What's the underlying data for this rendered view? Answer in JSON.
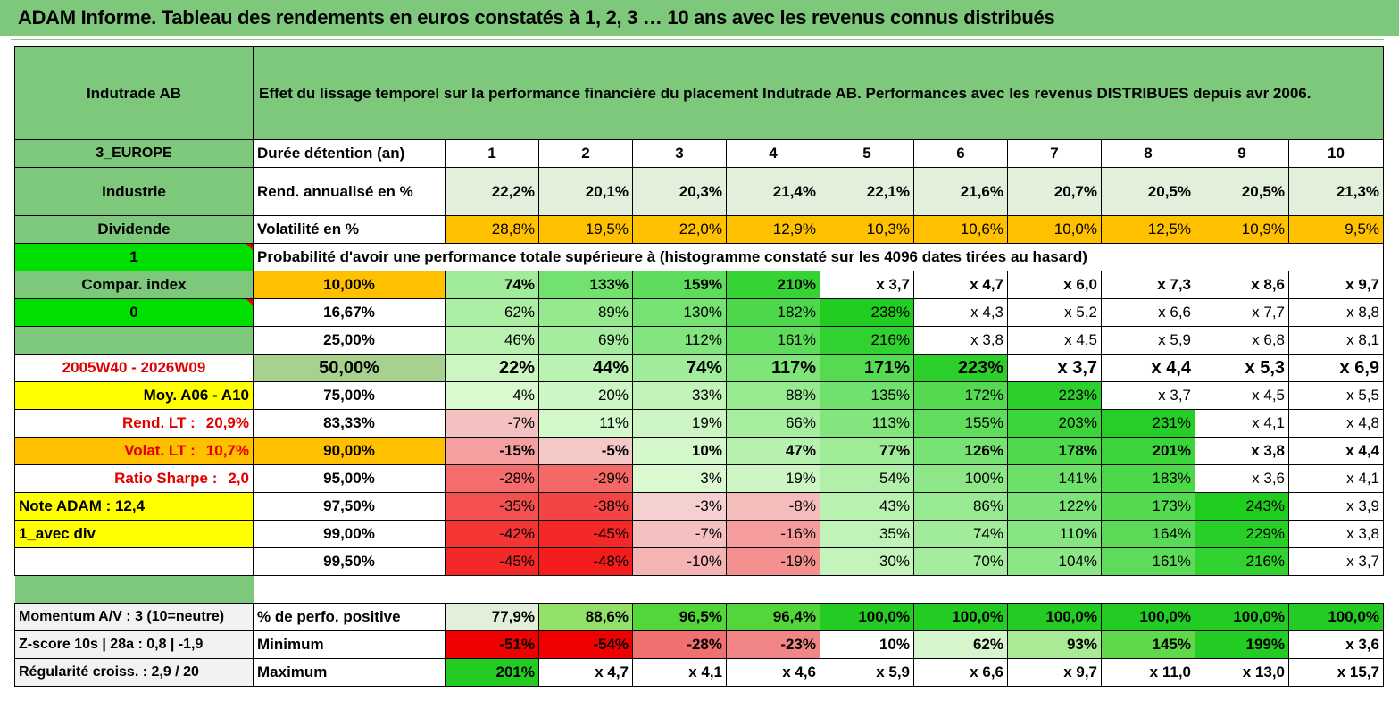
{
  "title": "ADAM Informe. Tableau des rendements en euros constatés à 1, 2, 3 … 10 ans avec les revenus connus distribués",
  "header": {
    "company": "Indutrade AB",
    "description": "Effet du lissage temporel sur la performance financière du placement Indutrade AB. Performances avec les revenus DISTRIBUES depuis avr 2006."
  },
  "side": {
    "region": "3_EUROPE",
    "sector": "Industrie",
    "type": "Dividende",
    "flag1": "1",
    "compar": "Compar. index",
    "flag0": "0",
    "period": "2005W40 - 2026W09",
    "moy": "Moy. A06 - A10",
    "rend_lt_label": "Rend. LT :",
    "rend_lt_value": "20,9%",
    "volat_lt_label": "Volat. LT :",
    "volat_lt_value": "10,7%",
    "sharpe_label": "Ratio Sharpe :",
    "sharpe_value": "2,0",
    "note": "Note ADAM : 12,4",
    "avec_div": "1_avec div",
    "momentum": "Momentum A/V : 3 (10=neutre)",
    "zscore": "Z-score 10s | 28a : 0,8 | -1,9",
    "regularite": "Régularité croiss. : 2,9 / 20"
  },
  "labels": {
    "duree": "Durée détention (an)",
    "rend": "Rend. annualisé en %",
    "vol": "Volatilité en %",
    "proba": "Probabilité d'avoir une performance totale supérieure à (histogramme constaté sur les 4096 dates tirées au hasard)",
    "perf_pos": "% de perfo. positive",
    "minimum": "Minimum",
    "maximum": "Maximum"
  },
  "years": [
    "1",
    "2",
    "3",
    "4",
    "5",
    "6",
    "7",
    "8",
    "9",
    "10"
  ],
  "rend": [
    "22,2%",
    "20,1%",
    "20,3%",
    "21,4%",
    "22,1%",
    "21,6%",
    "20,7%",
    "20,5%",
    "20,5%",
    "21,3%"
  ],
  "vol": [
    "28,8%",
    "19,5%",
    "22,0%",
    "12,9%",
    "10,3%",
    "10,6%",
    "10,0%",
    "12,5%",
    "10,9%",
    "9,5%"
  ],
  "prob_rows": [
    {
      "label": "10,00%",
      "values": [
        "74%",
        "133%",
        "159%",
        "210%",
        "x 3,7",
        "x 4,7",
        "x 6,0",
        "x 7,3",
        "x 8,6",
        "x 9,7"
      ]
    },
    {
      "label": "16,67%",
      "values": [
        "62%",
        "89%",
        "130%",
        "182%",
        "238%",
        "x 4,3",
        "x 5,2",
        "x 6,6",
        "x 7,7",
        "x 8,8"
      ]
    },
    {
      "label": "25,00%",
      "values": [
        "46%",
        "69%",
        "112%",
        "161%",
        "216%",
        "x 3,8",
        "x 4,5",
        "x 5,9",
        "x 6,8",
        "x 8,1"
      ]
    },
    {
      "label": "50,00%",
      "values": [
        "22%",
        "44%",
        "74%",
        "117%",
        "171%",
        "223%",
        "x 3,7",
        "x 4,4",
        "x 5,3",
        "x 6,9"
      ]
    },
    {
      "label": "75,00%",
      "values": [
        "4%",
        "20%",
        "33%",
        "88%",
        "135%",
        "172%",
        "223%",
        "x 3,7",
        "x 4,5",
        "x 5,5"
      ]
    },
    {
      "label": "83,33%",
      "values": [
        "-7%",
        "11%",
        "19%",
        "66%",
        "113%",
        "155%",
        "203%",
        "231%",
        "x 4,1",
        "x 4,8"
      ]
    },
    {
      "label": "90,00%",
      "values": [
        "-15%",
        "-5%",
        "10%",
        "47%",
        "77%",
        "126%",
        "178%",
        "201%",
        "x 3,8",
        "x 4,4"
      ]
    },
    {
      "label": "95,00%",
      "values": [
        "-28%",
        "-29%",
        "3%",
        "19%",
        "54%",
        "100%",
        "141%",
        "183%",
        "x 3,6",
        "x 4,1"
      ]
    },
    {
      "label": "97,50%",
      "values": [
        "-35%",
        "-38%",
        "-3%",
        "-8%",
        "43%",
        "86%",
        "122%",
        "173%",
        "243%",
        "x 3,9"
      ]
    },
    {
      "label": "99,00%",
      "values": [
        "-42%",
        "-45%",
        "-7%",
        "-16%",
        "35%",
        "74%",
        "110%",
        "164%",
        "229%",
        "x 3,8"
      ]
    },
    {
      "label": "99,50%",
      "values": [
        "-45%",
        "-48%",
        "-10%",
        "-19%",
        "30%",
        "70%",
        "104%",
        "161%",
        "216%",
        "x 3,7"
      ]
    }
  ],
  "perf_pos": [
    "77,9%",
    "88,6%",
    "96,5%",
    "96,4%",
    "100,0%",
    "100,0%",
    "100,0%",
    "100,0%",
    "100,0%",
    "100,0%"
  ],
  "minimum": [
    "-51%",
    "-54%",
    "-28%",
    "-23%",
    "10%",
    "62%",
    "93%",
    "145%",
    "199%",
    "x 3,6"
  ],
  "maximum": [
    "201%",
    "x 4,7",
    "x 4,1",
    "x 4,6",
    "x 5,9",
    "x 6,6",
    "x 9,7",
    "x 11,0",
    "x 13,0",
    "x 15,7"
  ]
}
